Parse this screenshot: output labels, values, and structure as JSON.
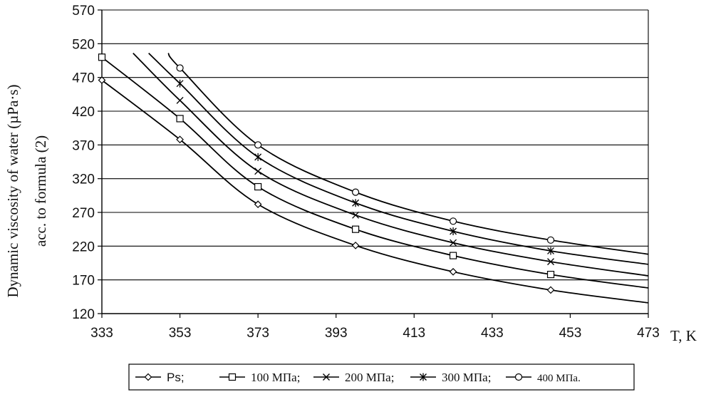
{
  "chart_data": {
    "type": "line",
    "title": "",
    "xlabel": "T, K",
    "ylabel_line1": "Dynamic viscosity of water (µPa·s)",
    "ylabel_line2": "acc. to formula (2)",
    "xlim": [
      333,
      473
    ],
    "ylim": [
      120,
      570
    ],
    "x_ticks": [
      333,
      353,
      373,
      393,
      413,
      433,
      453,
      473
    ],
    "y_ticks": [
      120,
      170,
      220,
      270,
      320,
      370,
      420,
      470,
      520,
      570
    ],
    "grid": "horizontal",
    "legend_position": "bottom",
    "marker_x": [
      333,
      353,
      373,
      398,
      423,
      448
    ],
    "series": [
      {
        "name": "Ps;",
        "marker": "diamond",
        "values": [
          466,
          378,
          282,
          221,
          182,
          155
        ],
        "curve_x": [
          333,
          353,
          373,
          398,
          423,
          448,
          473
        ],
        "curve_y": [
          466,
          378,
          282,
          221,
          182,
          155,
          136
        ]
      },
      {
        "name": "100 МПа;",
        "marker": "square",
        "values": [
          500,
          409,
          308,
          245,
          206,
          178
        ],
        "curve_x": [
          333,
          353,
          373,
          398,
          423,
          448,
          473
        ],
        "curve_y": [
          500,
          409,
          308,
          245,
          206,
          178,
          158
        ]
      },
      {
        "name": "200 МПа;",
        "marker": "x",
        "values": [
          null,
          436,
          331,
          266,
          225,
          197
        ],
        "curve_x": [
          341,
          353,
          373,
          398,
          423,
          448,
          473
        ],
        "curve_y": [
          506,
          436,
          331,
          266,
          225,
          197,
          176
        ]
      },
      {
        "name": "300 МПа;",
        "marker": "asterisk",
        "values": [
          null,
          461,
          352,
          284,
          242,
          213
        ],
        "curve_x": [
          345,
          353,
          373,
          398,
          423,
          448,
          473
        ],
        "curve_y": [
          506,
          461,
          352,
          284,
          242,
          213,
          193
        ]
      },
      {
        "name": "400 МПа.",
        "marker": "circle",
        "values": [
          null,
          484,
          370,
          300,
          257,
          229
        ],
        "curve_x": [
          350,
          353,
          373,
          398,
          423,
          448,
          473
        ],
        "curve_y": [
          506,
          484,
          370,
          300,
          257,
          229,
          208
        ]
      }
    ]
  }
}
